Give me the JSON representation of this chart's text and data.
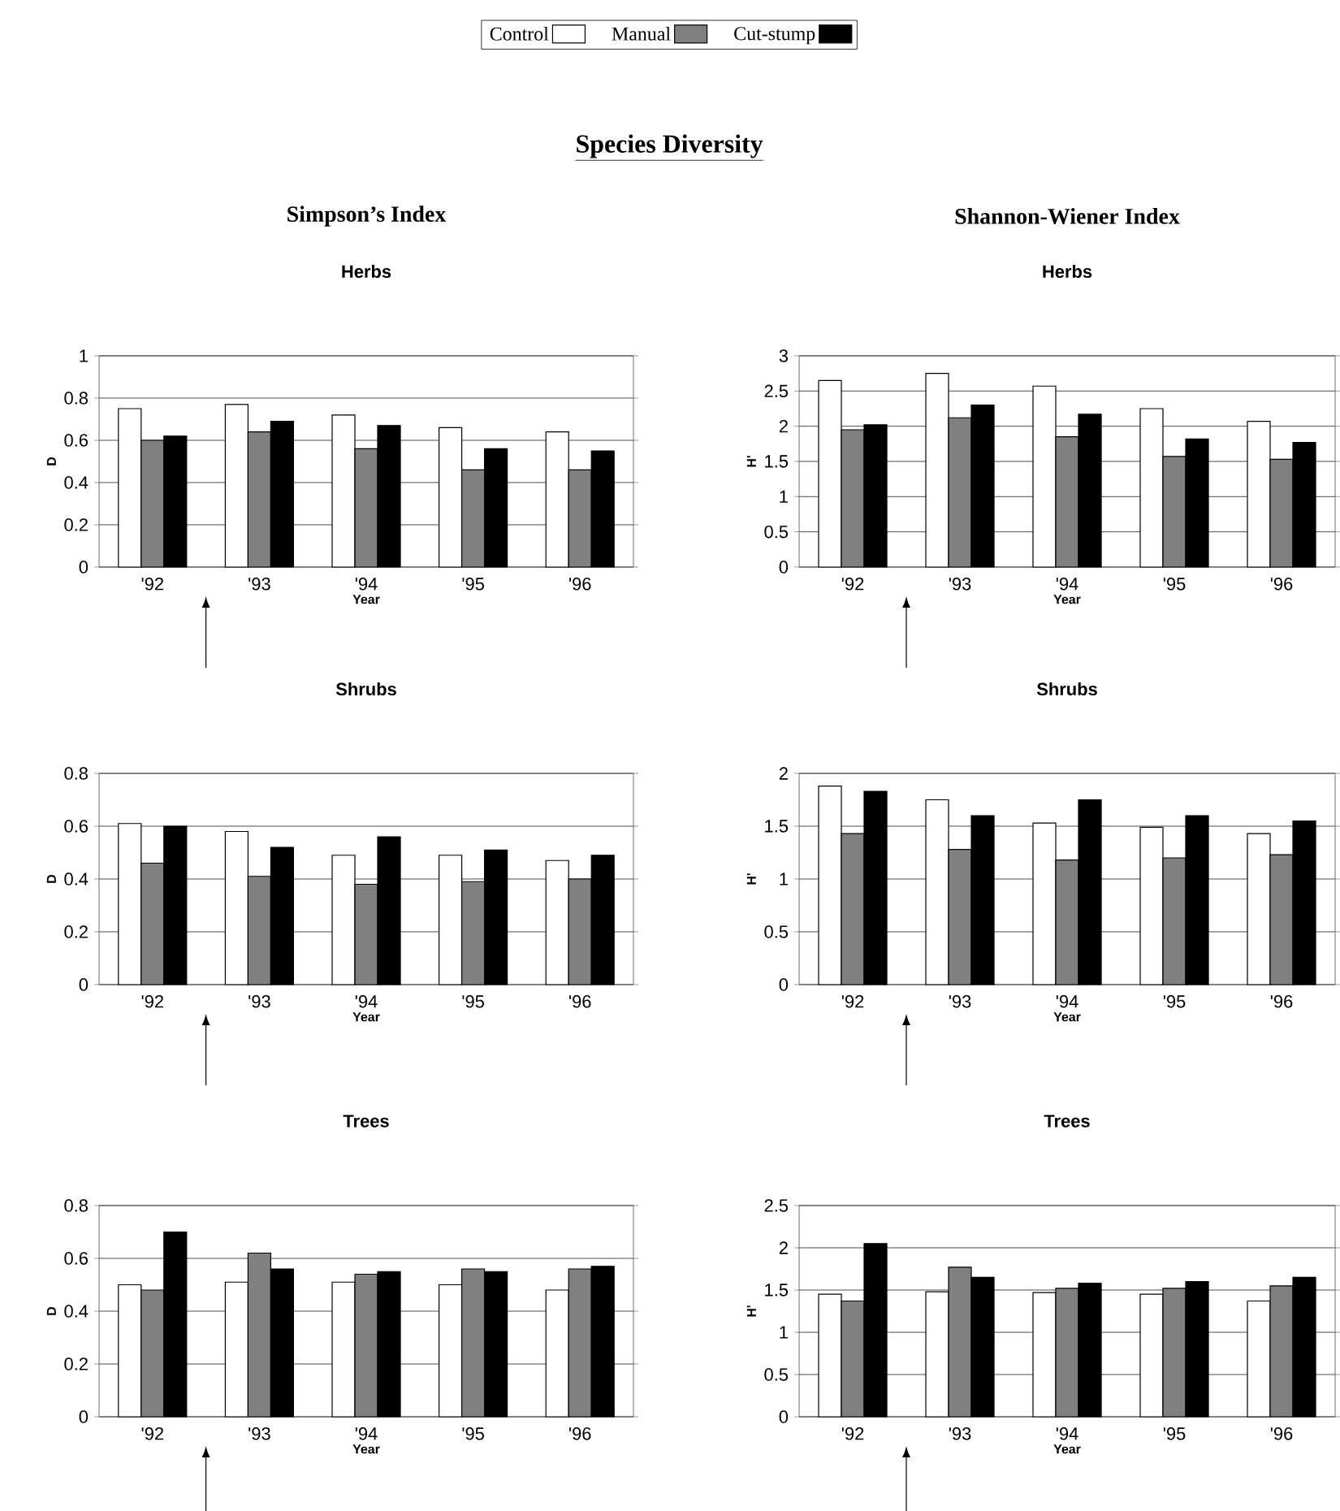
{
  "chart_data": [
    {
      "type": "bar",
      "title": "Herbs",
      "xlabel": "Year",
      "ylabel": "D",
      "annotations": [
        "Species Diversity",
        "Simpson’s Index"
      ],
      "categories": [
        "'92",
        "'93",
        "'94",
        "'95",
        "'96"
      ],
      "ylim": [
        0,
        1
      ],
      "yticks": [
        0,
        0.2,
        0.4,
        0.6,
        0.8,
        1
      ],
      "grid": "y",
      "legend": "top",
      "series": [
        {
          "name": "Control",
          "color": "#ffffff",
          "values": [
            0.75,
            0.77,
            0.72,
            0.66,
            0.64
          ]
        },
        {
          "name": "Manual",
          "color": "#808080",
          "values": [
            0.6,
            0.64,
            0.56,
            0.46,
            0.46
          ]
        },
        {
          "name": "Cut-stump",
          "color": "#000000",
          "values": [
            0.62,
            0.69,
            0.67,
            0.56,
            0.55
          ]
        }
      ]
    },
    {
      "type": "bar",
      "title": "Herbs",
      "xlabel": "Year",
      "ylabel": "H'",
      "annotations": [
        "Shannon-Wiener Index"
      ],
      "categories": [
        "'92",
        "'93",
        "'94",
        "'95",
        "'96"
      ],
      "ylim": [
        0,
        3
      ],
      "yticks": [
        0,
        0.5,
        1,
        1.5,
        2,
        2.5,
        3
      ],
      "grid": "y",
      "series": [
        {
          "color": "#ffffff",
          "values": [
            2.65,
            2.75,
            2.57,
            2.25,
            2.07
          ]
        },
        {
          "color": "#808080",
          "values": [
            1.95,
            2.12,
            1.85,
            1.57,
            1.53
          ]
        },
        {
          "color": "#000000",
          "values": [
            2.02,
            2.3,
            2.17,
            1.82,
            1.77
          ]
        }
      ]
    },
    {
      "type": "bar",
      "title": "Shrubs",
      "xlabel": "Year",
      "ylabel": "D",
      "categories": [
        "'92",
        "'93",
        "'94",
        "'95",
        "'96"
      ],
      "ylim": [
        0,
        0.8
      ],
      "yticks": [
        0,
        0.2,
        0.4,
        0.6,
        0.8
      ],
      "grid": "y",
      "series": [
        {
          "color": "#ffffff",
          "values": [
            0.61,
            0.58,
            0.49,
            0.49,
            0.47
          ]
        },
        {
          "color": "#808080",
          "values": [
            0.46,
            0.41,
            0.38,
            0.39,
            0.4
          ]
        },
        {
          "color": "#000000",
          "values": [
            0.6,
            0.52,
            0.56,
            0.51,
            0.49
          ]
        }
      ]
    },
    {
      "type": "bar",
      "title": "Shrubs",
      "xlabel": "Year",
      "ylabel": "H'",
      "categories": [
        "'92",
        "'93",
        "'94",
        "'95",
        "'96"
      ],
      "ylim": [
        0,
        2
      ],
      "yticks": [
        0,
        0.5,
        1,
        1.5,
        2
      ],
      "grid": "y",
      "series": [
        {
          "color": "#ffffff",
          "values": [
            1.88,
            1.75,
            1.53,
            1.49,
            1.43
          ]
        },
        {
          "color": "#808080",
          "values": [
            1.43,
            1.28,
            1.18,
            1.2,
            1.23
          ]
        },
        {
          "color": "#000000",
          "values": [
            1.83,
            1.6,
            1.75,
            1.6,
            1.55
          ]
        }
      ]
    },
    {
      "type": "bar",
      "title": "Trees",
      "xlabel": "Year",
      "ylabel": "D",
      "categories": [
        "'92",
        "'93",
        "'94",
        "'95",
        "'96"
      ],
      "ylim": [
        0,
        0.8
      ],
      "yticks": [
        0,
        0.2,
        0.4,
        0.6,
        0.8
      ],
      "grid": "y",
      "series": [
        {
          "color": "#ffffff",
          "values": [
            0.5,
            0.51,
            0.51,
            0.5,
            0.48
          ]
        },
        {
          "color": "#808080",
          "values": [
            0.48,
            0.62,
            0.54,
            0.56,
            0.56
          ]
        },
        {
          "color": "#000000",
          "values": [
            0.7,
            0.56,
            0.55,
            0.55,
            0.57
          ]
        }
      ]
    },
    {
      "type": "bar",
      "title": "Trees",
      "xlabel": "Year",
      "ylabel": "H'",
      "categories": [
        "'92",
        "'93",
        "'94",
        "'95",
        "'96"
      ],
      "ylim": [
        0,
        2.5
      ],
      "yticks": [
        0,
        0.5,
        1,
        1.5,
        2,
        2.5
      ],
      "grid": "y",
      "series": [
        {
          "color": "#ffffff",
          "values": [
            1.45,
            1.48,
            1.47,
            1.45,
            1.37
          ]
        },
        {
          "color": "#808080",
          "values": [
            1.37,
            1.77,
            1.52,
            1.52,
            1.55
          ]
        },
        {
          "color": "#000000",
          "values": [
            2.05,
            1.65,
            1.58,
            1.6,
            1.65
          ]
        }
      ]
    }
  ]
}
